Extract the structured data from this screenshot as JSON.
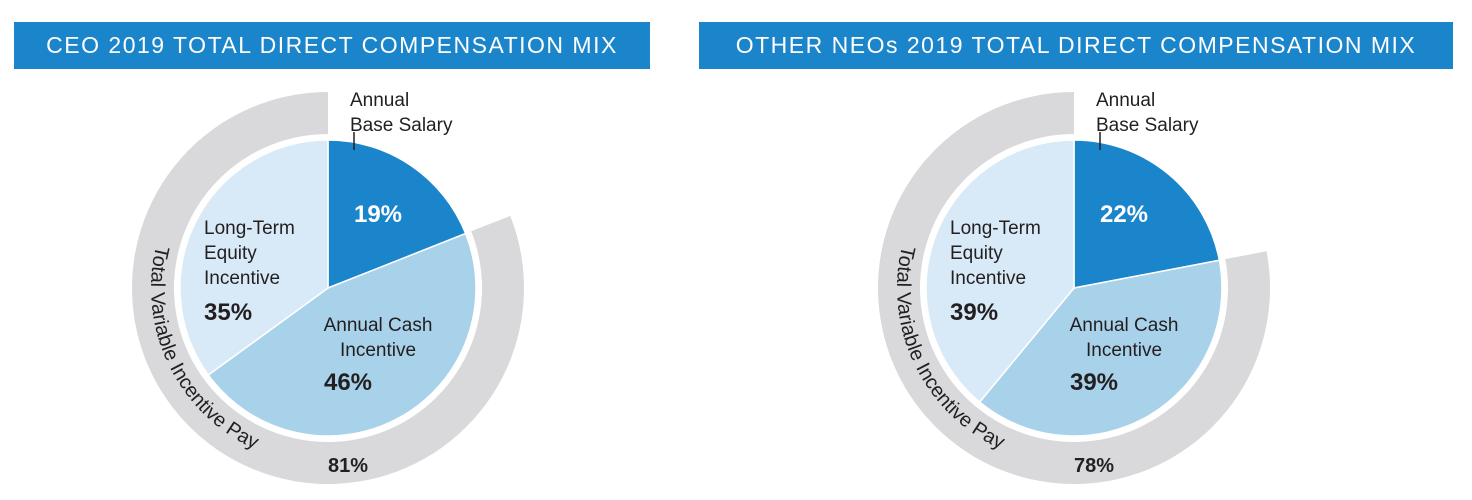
{
  "colors": {
    "banner": "#1b85cc",
    "annual_base_salary": "#1b85cc",
    "annual_cash_incentive": "#a8d1ea",
    "long_term_equity_incentive": "#d8eaf7",
    "variable_ring": "#d9d9db",
    "text": "#231f20"
  },
  "chart_data": [
    {
      "type": "pie",
      "title": "CEO 2019 TOTAL DIRECT COMPENSATION MIX",
      "slices": [
        {
          "label_lines": [
            "Annual",
            "Base Salary"
          ],
          "value": 19,
          "value_label": "19%"
        },
        {
          "label_lines": [
            "Annual Cash",
            "Incentive"
          ],
          "value": 46,
          "value_label": "46%"
        },
        {
          "label_lines": [
            "Long-Term",
            "Equity",
            "Incentive"
          ],
          "value": 35,
          "value_label": "35%"
        }
      ],
      "variable_ring": {
        "label": "Total Variable Incentive Pay",
        "value": 81,
        "value_label": "81%"
      }
    },
    {
      "type": "pie",
      "title": "OTHER NEOs 2019 TOTAL DIRECT COMPENSATION MIX",
      "slices": [
        {
          "label_lines": [
            "Annual",
            "Base Salary"
          ],
          "value": 22,
          "value_label": "22%"
        },
        {
          "label_lines": [
            "Annual Cash",
            "Incentive"
          ],
          "value": 39,
          "value_label": "39%"
        },
        {
          "label_lines": [
            "Long-Term",
            "Equity",
            "Incentive"
          ],
          "value": 39,
          "value_label": "39%"
        }
      ],
      "variable_ring": {
        "label": "Total Variable Incentive Pay",
        "value": 78,
        "value_label": "78%"
      }
    }
  ]
}
